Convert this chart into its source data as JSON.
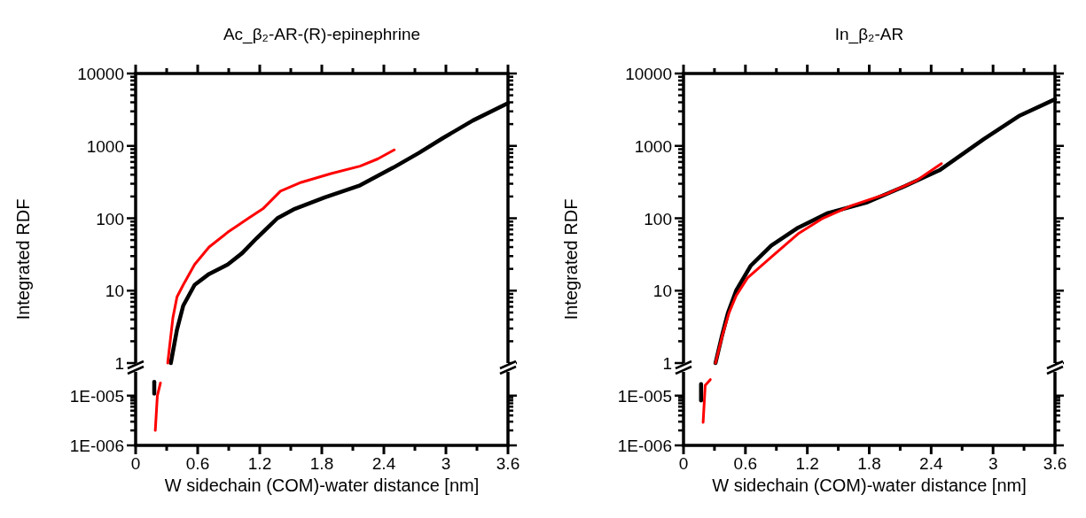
{
  "chart_data": [
    {
      "type": "line",
      "title": "Ac_β₂-AR-(R)-epinephrine",
      "ylabel": "Integrated RDF",
      "log": "y",
      "tick_labels": "y",
      "xlim": [
        0,
        3.6
      ],
      "xticks": [
        0,
        {
          "value": 0.3,
          "label": null
        },
        0.6,
        {
          "value": 0.9,
          "label": null
        },
        1.2,
        {
          "value": 1.5,
          "label": null
        },
        1.8,
        {
          "value": 2.1,
          "label": null
        },
        2.4,
        {
          "value": 2.7,
          "label": null
        },
        3,
        {
          "value": 3.3,
          "label": null
        },
        3.6
      ],
      "ylim": [
        1,
        10000
      ],
      "yticks": [
        1,
        {
          "value": 2,
          "label": null
        },
        {
          "value": 3,
          "label": null
        },
        {
          "value": 4,
          "label": null
        },
        {
          "value": 5,
          "label": null
        },
        {
          "value": 6,
          "label": null
        },
        {
          "value": 7,
          "label": null
        },
        {
          "value": 8,
          "label": null
        },
        {
          "value": 9,
          "label": null
        },
        10,
        {
          "value": 20,
          "label": null
        },
        {
          "value": 30,
          "label": null
        },
        {
          "value": 40,
          "label": null
        },
        {
          "value": 50,
          "label": null
        },
        {
          "value": 60,
          "label": null
        },
        {
          "value": 70,
          "label": null
        },
        {
          "value": 80,
          "label": null
        },
        {
          "value": 90,
          "label": null
        },
        100,
        {
          "value": 200,
          "label": null
        },
        {
          "value": 300,
          "label": null
        },
        {
          "value": 400,
          "label": null
        },
        {
          "value": 500,
          "label": null
        },
        {
          "value": 600,
          "label": null
        },
        {
          "value": 700,
          "label": null
        },
        {
          "value": 800,
          "label": null
        },
        {
          "value": 900,
          "label": null
        },
        1000,
        {
          "value": 2000,
          "label": null
        },
        {
          "value": 3000,
          "label": null
        },
        {
          "value": 4000,
          "label": null
        },
        {
          "value": 5000,
          "label": null
        },
        {
          "value": 6000,
          "label": null
        },
        {
          "value": 7000,
          "label": null
        },
        {
          "value": 8000,
          "label": null
        },
        {
          "value": 9000,
          "label": null
        },
        10000
      ],
      "series": [
        {
          "color": "#000000",
          "x": [
            0.34,
            0.4,
            0.46,
            0.57,
            0.71,
            0.89,
            1.03,
            1.17,
            1.37,
            1.54,
            1.83,
            2.17,
            2.49,
            2.74,
            2.97,
            3.26,
            3.6
          ],
          "values": [
            1,
            2.9,
            6.2,
            12,
            17,
            23,
            33,
            53,
            100,
            135,
            195,
            285,
            500,
            800,
            1280,
            2240,
            3900
          ]
        },
        {
          "color": "#ff0000",
          "x": [
            0.31,
            0.36,
            0.4,
            0.46,
            0.57,
            0.71,
            0.89,
            1.09,
            1.23,
            1.4,
            1.6,
            1.89,
            2.17,
            2.34,
            2.5
          ],
          "values": [
            1,
            4.2,
            8.2,
            12,
            23,
            40,
            64,
            100,
            135,
            237,
            313,
            415,
            525,
            660,
            880
          ]
        }
      ]
    },
    {
      "type": "line",
      "xlabel": "W sidechain (COM)-water distance [nm]",
      "log": "y",
      "xlim": [
        0,
        3.6
      ],
      "xticks": [
        0,
        {
          "value": 0.3,
          "label": null
        },
        0.6,
        {
          "value": 0.9,
          "label": null
        },
        1.2,
        {
          "value": 1.5,
          "label": null
        },
        1.8,
        {
          "value": 2.1,
          "label": null
        },
        2.4,
        {
          "value": 2.7,
          "label": null
        },
        3,
        {
          "value": 3.3,
          "label": null
        },
        3.6
      ],
      "ylim": [
        1e-06,
        3e-05
      ],
      "yticks": [
        {
          "value": 1e-06,
          "label": "1E-006"
        },
        {
          "value": 2e-06,
          "label": null
        },
        {
          "value": 3e-06,
          "label": null
        },
        {
          "value": 4e-06,
          "label": null
        },
        {
          "value": 5e-06,
          "label": null
        },
        {
          "value": 6e-06,
          "label": null
        },
        {
          "value": 7e-06,
          "label": null
        },
        {
          "value": 8e-06,
          "label": null
        },
        {
          "value": 9e-06,
          "label": null
        },
        {
          "value": 1e-05,
          "label": "1E-005"
        }
      ],
      "series": [
        {
          "color": "#000000",
          "x": [
            0.18,
            0.18
          ],
          "values": [
            1.1e-05,
            1.9e-05
          ]
        },
        {
          "color": "#ff0000",
          "x": [
            0.19,
            0.21,
            0.24
          ],
          "values": [
            2e-06,
            1e-05,
            1.8e-05
          ]
        }
      ]
    },
    {
      "type": "line",
      "title": "In_β₂-AR",
      "ylabel": "Integrated RDF",
      "log": "y",
      "tick_labels": "y",
      "xlim": [
        0,
        3.6
      ],
      "xticks": [
        0,
        {
          "value": 0.3,
          "label": null
        },
        0.6,
        {
          "value": 0.9,
          "label": null
        },
        1.2,
        {
          "value": 1.5,
          "label": null
        },
        1.8,
        {
          "value": 2.1,
          "label": null
        },
        2.4,
        {
          "value": 2.7,
          "label": null
        },
        3,
        {
          "value": 3.3,
          "label": null
        },
        3.6
      ],
      "ylim": [
        1,
        10000
      ],
      "yticks": [
        1,
        {
          "value": 2,
          "label": null
        },
        {
          "value": 3,
          "label": null
        },
        {
          "value": 4,
          "label": null
        },
        {
          "value": 5,
          "label": null
        },
        {
          "value": 6,
          "label": null
        },
        {
          "value": 7,
          "label": null
        },
        {
          "value": 8,
          "label": null
        },
        {
          "value": 9,
          "label": null
        },
        10,
        {
          "value": 20,
          "label": null
        },
        {
          "value": 30,
          "label": null
        },
        {
          "value": 40,
          "label": null
        },
        {
          "value": 50,
          "label": null
        },
        {
          "value": 60,
          "label": null
        },
        {
          "value": 70,
          "label": null
        },
        {
          "value": 80,
          "label": null
        },
        {
          "value": 90,
          "label": null
        },
        100,
        {
          "value": 200,
          "label": null
        },
        {
          "value": 300,
          "label": null
        },
        {
          "value": 400,
          "label": null
        },
        {
          "value": 500,
          "label": null
        },
        {
          "value": 600,
          "label": null
        },
        {
          "value": 700,
          "label": null
        },
        {
          "value": 800,
          "label": null
        },
        {
          "value": 900,
          "label": null
        },
        1000,
        {
          "value": 2000,
          "label": null
        },
        {
          "value": 3000,
          "label": null
        },
        {
          "value": 4000,
          "label": null
        },
        {
          "value": 5000,
          "label": null
        },
        {
          "value": 6000,
          "label": null
        },
        {
          "value": 7000,
          "label": null
        },
        {
          "value": 8000,
          "label": null
        },
        {
          "value": 9000,
          "label": null
        },
        10000
      ],
      "series": [
        {
          "color": "#000000",
          "x": [
            0.31,
            0.37,
            0.43,
            0.51,
            0.65,
            0.85,
            1.11,
            1.4,
            1.77,
            2.14,
            2.48,
            2.91,
            3.26,
            3.6
          ],
          "values": [
            1,
            2.3,
            4.9,
            10,
            22,
            42,
            74,
            118,
            164,
            276,
            460,
            1240,
            2630,
            4400
          ]
        },
        {
          "color": "#ff0000",
          "x": [
            0.31,
            0.38,
            0.44,
            0.51,
            0.62,
            0.85,
            1.11,
            1.34,
            1.63,
            1.97,
            2.26,
            2.5
          ],
          "values": [
            1,
            2.5,
            4.9,
            8.5,
            15,
            29,
            61,
            98,
            150,
            218,
            333,
            570
          ]
        }
      ]
    },
    {
      "type": "line",
      "xlabel": "W sidechain (COM)-water distance [nm]",
      "log": "y",
      "xlim": [
        0,
        3.6
      ],
      "xticks": [
        0,
        {
          "value": 0.3,
          "label": null
        },
        0.6,
        {
          "value": 0.9,
          "label": null
        },
        1.2,
        {
          "value": 1.5,
          "label": null
        },
        1.8,
        {
          "value": 2.1,
          "label": null
        },
        2.4,
        {
          "value": 2.7,
          "label": null
        },
        3,
        {
          "value": 3.3,
          "label": null
        },
        3.6
      ],
      "ylim": [
        1e-06,
        3e-05
      ],
      "yticks": [
        {
          "value": 1e-06,
          "label": "1E-006"
        },
        {
          "value": 2e-06,
          "label": null
        },
        {
          "value": 3e-06,
          "label": null
        },
        {
          "value": 4e-06,
          "label": null
        },
        {
          "value": 5e-06,
          "label": null
        },
        {
          "value": 6e-06,
          "label": null
        },
        {
          "value": 7e-06,
          "label": null
        },
        {
          "value": 8e-06,
          "label": null
        },
        {
          "value": 9e-06,
          "label": null
        },
        {
          "value": 1e-05,
          "label": "1E-005"
        }
      ],
      "series": [
        {
          "color": "#000000",
          "x": [
            0.17,
            0.17
          ],
          "values": [
            8e-06,
            1.7e-05
          ]
        },
        {
          "color": "#ff0000",
          "x": [
            0.19,
            0.21,
            0.26
          ],
          "values": [
            2.9e-06,
            1.6e-05,
            2.1e-05
          ]
        }
      ]
    }
  ]
}
